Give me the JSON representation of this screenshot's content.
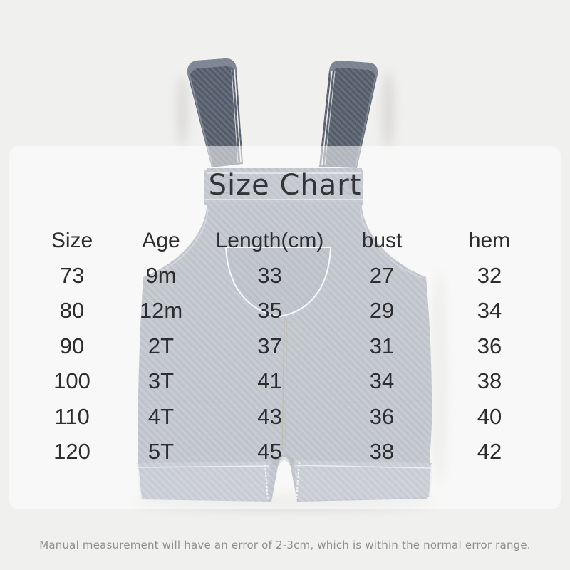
{
  "title": "Size Chart",
  "table": {
    "headers": [
      "Size",
      "Age",
      "Length(cm)",
      "bust",
      "hem"
    ],
    "rows": [
      [
        "73",
        "9m",
        "33",
        "27",
        "32"
      ],
      [
        "80",
        "12m",
        "35",
        "29",
        "34"
      ],
      [
        "90",
        "2T",
        "37",
        "31",
        "36"
      ],
      [
        "100",
        "3T",
        "41",
        "34",
        "38"
      ],
      [
        "110",
        "4T",
        "43",
        "36",
        "40"
      ],
      [
        "120",
        "5T",
        "45",
        "38",
        "42"
      ]
    ]
  },
  "footer": {
    "note": "Manual measurement will have an error of 2-3cm, which is within the normal error range."
  },
  "image": {
    "alt": "Gray denim toddler overall shorts product photo"
  },
  "colors": {
    "background": "#f0f0ef",
    "panel_overlay": "rgba(255,255,255,0.55)",
    "title_text": "#333436",
    "table_text": "#2d2d2f",
    "footer_text": "#8e8e8e",
    "denim_body": "#7b8393",
    "denim_strap": "#5c6472",
    "seam_thread": "#6e6748"
  },
  "chart_data": {
    "type": "table",
    "title": "Size Chart",
    "columns": [
      "Size",
      "Age",
      "Length(cm)",
      "bust",
      "hem"
    ],
    "rows": [
      [
        73,
        "9m",
        33,
        27,
        32
      ],
      [
        80,
        "12m",
        35,
        29,
        34
      ],
      [
        90,
        "2T",
        37,
        31,
        36
      ],
      [
        100,
        "3T",
        41,
        34,
        38
      ],
      [
        110,
        "4T",
        43,
        36,
        40
      ],
      [
        120,
        "5T",
        45,
        38,
        42
      ]
    ],
    "note": "Manual measurement will have an error of 2-3cm, which is within the normal error range."
  }
}
